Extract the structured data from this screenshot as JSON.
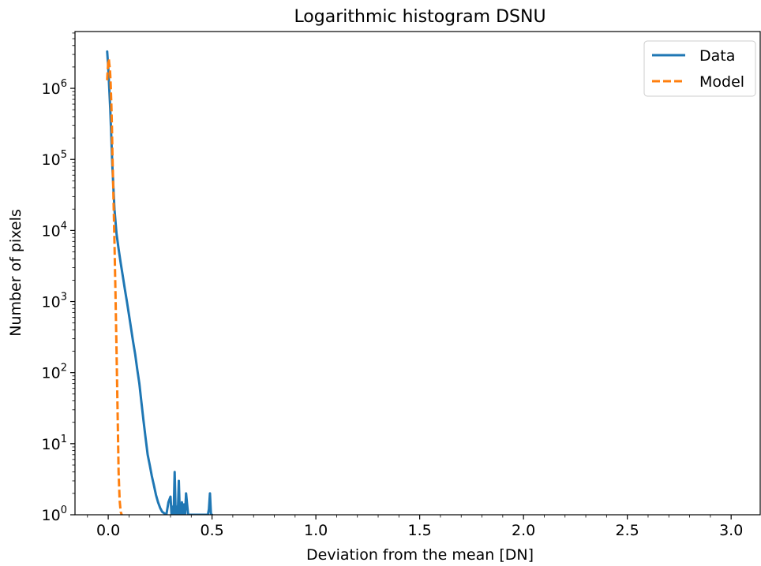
{
  "chart_data": {
    "type": "line",
    "title": "Logarithmic histogram DSNU",
    "xlabel": "Deviation from the mean [DN]",
    "ylabel": "Number of pixels",
    "xlim": [
      -0.16,
      3.14
    ],
    "ylim": [
      1,
      6300000
    ],
    "yscale": "log",
    "xticks": [
      0.0,
      0.5,
      1.0,
      1.5,
      2.0,
      2.5,
      3.0
    ],
    "xtick_labels": [
      "0.0",
      "0.5",
      "1.0",
      "1.5",
      "2.0",
      "2.5",
      "3.0"
    ],
    "yticks": [
      1,
      10,
      100,
      1000,
      10000,
      100000,
      1000000
    ],
    "ytick_labels": [
      {
        "base": "10",
        "exp": "0"
      },
      {
        "base": "10",
        "exp": "1"
      },
      {
        "base": "10",
        "exp": "2"
      },
      {
        "base": "10",
        "exp": "3"
      },
      {
        "base": "10",
        "exp": "4"
      },
      {
        "base": "10",
        "exp": "5"
      },
      {
        "base": "10",
        "exp": "6"
      }
    ],
    "grid": false,
    "legend_position": "top-right",
    "series": [
      {
        "name": "Data",
        "color": "#1f77b4",
        "style": "solid",
        "x": [
          -0.005,
          0.0,
          0.01,
          0.02,
          0.03,
          0.04,
          0.05,
          0.06,
          0.07,
          0.08,
          0.09,
          0.1,
          0.11,
          0.12,
          0.13,
          0.14,
          0.15,
          0.16,
          0.17,
          0.18,
          0.19,
          0.2,
          0.21,
          0.22,
          0.23,
          0.24,
          0.25,
          0.26,
          0.27,
          0.28,
          0.29,
          0.3,
          0.305,
          0.31,
          0.315,
          0.32,
          0.325,
          0.33,
          0.335,
          0.34,
          0.345,
          0.35,
          0.355,
          0.36,
          0.365,
          0.37,
          0.375,
          0.38,
          0.385,
          0.39,
          0.48,
          0.485,
          0.49,
          0.495,
          0.5
        ],
        "y": [
          3300000,
          2000000,
          500000,
          80000,
          20000,
          9000,
          5500,
          3500,
          2300,
          1500,
          1000,
          650,
          420,
          270,
          180,
          110,
          70,
          38,
          21,
          12,
          7,
          5,
          3.5,
          2.6,
          1.9,
          1.5,
          1.25,
          1.1,
          1.05,
          1.0,
          1.5,
          1.8,
          1.0,
          1.3,
          1.0,
          4.0,
          1.0,
          1.3,
          1.0,
          3.0,
          1.0,
          1.0,
          1.5,
          1.0,
          1.4,
          1.0,
          2.0,
          1.4,
          1.0,
          1.0,
          1.0,
          1.2,
          2.0,
          1.0,
          1.0
        ]
      },
      {
        "name": "Model",
        "color": "#ff7f0e",
        "style": "dashed",
        "x": [
          -0.005,
          -0.003,
          0.0,
          0.003,
          0.005,
          0.008,
          0.01,
          0.012,
          0.015,
          0.018,
          0.02,
          0.025,
          0.03,
          0.035,
          0.04,
          0.045,
          0.05,
          0.055,
          0.06,
          0.065
        ],
        "y": [
          1300000,
          1700000,
          2300000,
          2600000,
          2200000,
          1900000,
          1500000,
          1100000,
          600000,
          280000,
          130000,
          32000,
          7000,
          1300,
          210,
          30,
          4,
          1.6,
          1.1,
          1.0
        ]
      }
    ]
  }
}
